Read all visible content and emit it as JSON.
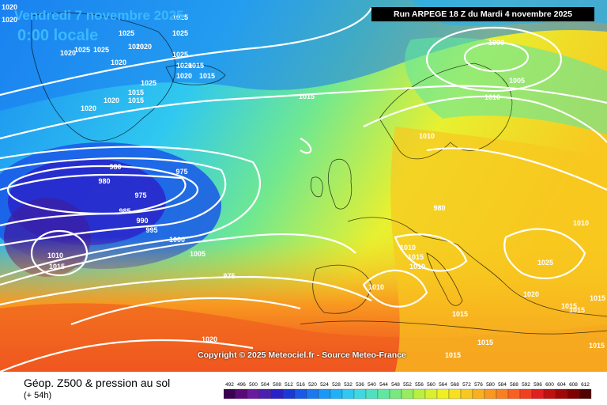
{
  "header": {
    "date": "Vendredi 7 novembre 2025",
    "time": "0:00 locale",
    "run": "Run ARPEGE 18 Z du Mardi 4 novembre 2025"
  },
  "copyright": "Copyright © 2025 Meteociel.fr - Source Meteo-France",
  "legend": {
    "title": "Géop. Z500 & pression au sol",
    "subtitle": "(+ 54h)",
    "scale_values": [
      "492",
      "496",
      "500",
      "504",
      "508",
      "512",
      "516",
      "520",
      "524",
      "528",
      "532",
      "536",
      "540",
      "544",
      "548",
      "552",
      "556",
      "560",
      "564",
      "568",
      "572",
      "576",
      "580",
      "584",
      "588",
      "592",
      "596",
      "600",
      "604",
      "608",
      "612"
    ],
    "scale_colors": [
      "#3c0050",
      "#5a0a78",
      "#6a1aa0",
      "#4a20b0",
      "#2a20c8",
      "#1a38d8",
      "#1a58e8",
      "#1a78f0",
      "#1a98f8",
      "#20b0f8",
      "#30c8f0",
      "#40d8e0",
      "#50e0c0",
      "#60e8a0",
      "#78e880",
      "#98ec60",
      "#b8f040",
      "#d8f030",
      "#f0f020",
      "#f8e020",
      "#f8c820",
      "#f8b020",
      "#f89820",
      "#f88020",
      "#f86020",
      "#f04020",
      "#e02020",
      "#c01010",
      "#a00808",
      "#800000",
      "#500000"
    ]
  },
  "pressure_labels": [
    "1020",
    "1025",
    "1020",
    "1025",
    "1025",
    "1020",
    "1025",
    "1020",
    "1020",
    "1025",
    "1020",
    "1025",
    "1020",
    "1015",
    "1025",
    "1020",
    "1015",
    "1020",
    "1015",
    "1020",
    "1015",
    "1015",
    "1000",
    "1005",
    "1010",
    "1010",
    "980",
    "980",
    "975",
    "975",
    "985",
    "990",
    "995",
    "1000",
    "1005",
    "1010",
    "1015",
    "975",
    "980",
    "1010",
    "1010",
    "1015",
    "1010",
    "1010",
    "1025",
    "1020",
    "1015",
    "1015",
    "1015",
    "1015",
    "1015",
    "1015",
    "1020",
    "1015"
  ],
  "isobar_values": [
    "980",
    "985",
    "990",
    "995",
    "1000",
    "1005",
    "1010",
    "1015",
    "1020",
    "1025"
  ]
}
